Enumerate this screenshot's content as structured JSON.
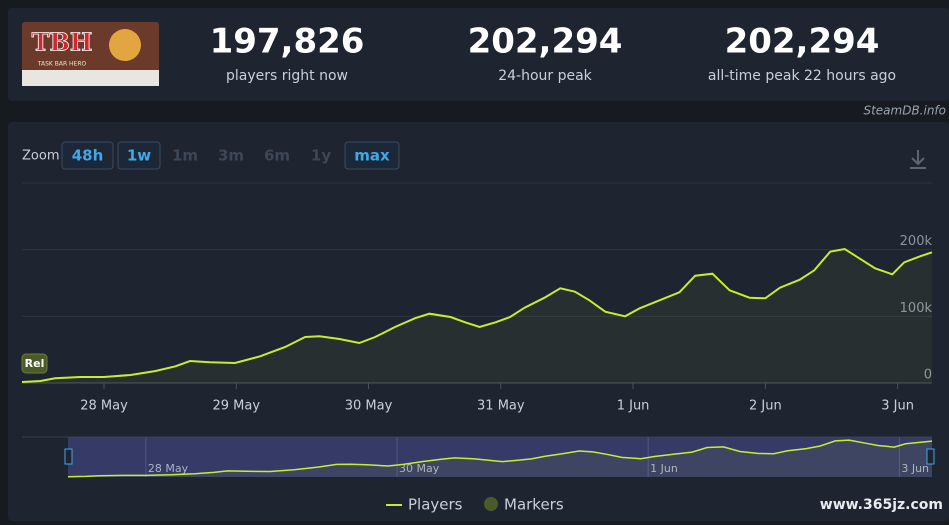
{
  "game": {
    "logo_text": "TBH",
    "logo_subtitle": "TASK BAR HERO"
  },
  "stats": [
    {
      "value": "197,826",
      "label": "players right now"
    },
    {
      "value": "202,294",
      "label": "24-hour peak"
    },
    {
      "value": "202,294",
      "label": "all-time peak 22 hours ago"
    }
  ],
  "source": "SteamDB.info",
  "zoom": {
    "label": "Zoom",
    "options": [
      {
        "label": "48h",
        "active": true
      },
      {
        "label": "1w",
        "active": true
      },
      {
        "label": "1m",
        "active": false
      },
      {
        "label": "3m",
        "active": false
      },
      {
        "label": "6m",
        "active": false
      },
      {
        "label": "1y",
        "active": false
      },
      {
        "label": "max",
        "active": true
      }
    ]
  },
  "watermark": "www.365jz.com",
  "chart_data": {
    "type": "line",
    "x": [
      -0.62,
      -0.48,
      -0.37,
      -0.18,
      0,
      0.2,
      0.39,
      0.54,
      0.65,
      0.8,
      0.99,
      1.18,
      1.37,
      1.52,
      1.63,
      1.78,
      1.93,
      2.05,
      2.2,
      2.35,
      2.46,
      2.62,
      2.73,
      2.84,
      2.96,
      3.07,
      3.18,
      3.33,
      3.45,
      3.56,
      3.67,
      3.79,
      3.94,
      4.05,
      4.2,
      4.35,
      4.47,
      4.6,
      4.73,
      4.88,
      5.0,
      5.11,
      5.26,
      5.37,
      5.49,
      5.6,
      5.71,
      5.83,
      5.96,
      6.05,
      6.17,
      6.26
    ],
    "series": [
      {
        "name": "Players",
        "color": "#c4ef2f",
        "values": [
          1500,
          3000,
          7000,
          9000,
          9000,
          12000,
          18000,
          25000,
          33000,
          31000,
          30000,
          40000,
          54000,
          69000,
          70000,
          66000,
          60000,
          69000,
          84000,
          97000,
          104000,
          99000,
          91000,
          84000,
          91000,
          99000,
          113000,
          128000,
          142000,
          137000,
          124000,
          107000,
          100000,
          112000,
          124000,
          136000,
          161000,
          164000,
          139000,
          128000,
          127000,
          143000,
          155000,
          169000,
          197000,
          201000,
          187000,
          172000,
          163000,
          181000,
          190000,
          196000
        ]
      }
    ],
    "markers": {
      "name": "Markers",
      "color": "#4a5a2b"
    },
    "annotations": [
      {
        "text": "Rel",
        "x": -0.62
      }
    ],
    "xlim": [
      -0.62,
      6.26
    ],
    "xticks": [
      {
        "value": 0,
        "label": "28 May"
      },
      {
        "value": 1,
        "label": "29 May"
      },
      {
        "value": 2,
        "label": "30 May"
      },
      {
        "value": 3,
        "label": "31 May"
      },
      {
        "value": 4,
        "label": "1 Jun"
      },
      {
        "value": 5,
        "label": "2 Jun"
      },
      {
        "value": 6,
        "label": "3 Jun"
      }
    ],
    "ylim": [
      0,
      300000
    ],
    "yticks": [
      0,
      {
        "value": 100000,
        "label": "100k"
      },
      {
        "value": 200000,
        "label": "200k"
      }
    ],
    "grid": true
  }
}
